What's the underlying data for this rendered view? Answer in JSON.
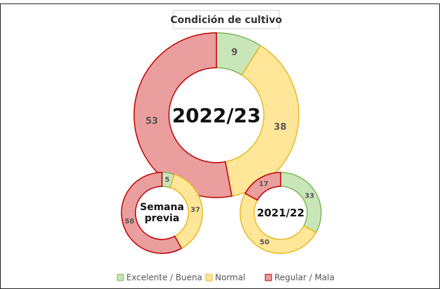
{
  "chart_data": [
    {
      "type": "donut",
      "title": "Condición de cultivo",
      "label": "2022/23",
      "categories": [
        "Excelente / Buena",
        "Normal",
        "Regular / Mala"
      ],
      "values": [
        9,
        38,
        53
      ],
      "colors": [
        "#c9e6b8",
        "#ffe699",
        "#eb9e9e"
      ]
    },
    {
      "type": "donut",
      "label": "Semana previa",
      "categories": [
        "Excelente / Buena",
        "Normal",
        "Regular / Mala"
      ],
      "values": [
        5,
        37,
        58
      ],
      "colors": [
        "#c9e6b8",
        "#ffe699",
        "#eb9e9e"
      ]
    },
    {
      "type": "donut",
      "label": "2021/22",
      "categories": [
        "Excelente / Buena",
        "Normal",
        "Regular / Mala"
      ],
      "values": [
        33,
        50,
        17
      ],
      "colors": [
        "#c9e6b8",
        "#ffe699",
        "#eb9e9e"
      ]
    }
  ]
}
